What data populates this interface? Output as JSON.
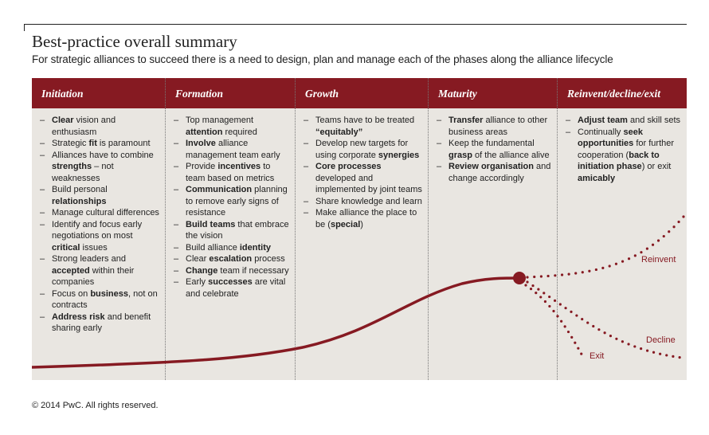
{
  "title": "Best-practice overall summary",
  "subtitle": "For strategic alliances to succeed there is a need to design, plan and manage each of the phases along the alliance lifecycle",
  "phases": [
    {
      "name": "Initiation",
      "items": [
        [
          {
            "t": "Clear",
            "b": 1
          },
          {
            "t": " vision and enthusiasm"
          }
        ],
        [
          {
            "t": "Strategic "
          },
          {
            "t": "fit",
            "b": 1
          },
          {
            "t": " is paramount"
          }
        ],
        [
          {
            "t": "Alliances have to combine "
          },
          {
            "t": "strengths",
            "b": 1
          },
          {
            "t": " – not weaknesses"
          }
        ],
        [
          {
            "t": "Build personal "
          },
          {
            "t": "relationships",
            "b": 1
          }
        ],
        [
          {
            "t": "Manage cultural differences"
          }
        ],
        [
          {
            "t": "Identify and focus early negotiations on most "
          },
          {
            "t": "critical",
            "b": 1
          },
          {
            "t": " issues"
          }
        ],
        [
          {
            "t": "Strong leaders and "
          },
          {
            "t": "accepted",
            "b": 1
          },
          {
            "t": " within their companies"
          }
        ],
        [
          {
            "t": "Focus on "
          },
          {
            "t": "business",
            "b": 1
          },
          {
            "t": ", not on contracts"
          }
        ],
        [
          {
            "t": "Address risk",
            "b": 1
          },
          {
            "t": " and benefit sharing early"
          }
        ]
      ]
    },
    {
      "name": "Formation",
      "items": [
        [
          {
            "t": "Top management "
          },
          {
            "t": "attention",
            "b": 1
          },
          {
            "t": " required"
          }
        ],
        [
          {
            "t": "Involve",
            "b": 1
          },
          {
            "t": " alliance management team early"
          }
        ],
        [
          {
            "t": "Provide "
          },
          {
            "t": "incentives",
            "b": 1
          },
          {
            "t": " to team based on metrics"
          }
        ],
        [
          {
            "t": "Communication",
            "b": 1
          },
          {
            "t": " planning to remove early signs of resistance"
          }
        ],
        [
          {
            "t": "Build teams",
            "b": 1
          },
          {
            "t": " that embrace the vision"
          }
        ],
        [
          {
            "t": "Build alliance "
          },
          {
            "t": "identity",
            "b": 1
          }
        ],
        [
          {
            "t": "Clear "
          },
          {
            "t": "escalation",
            "b": 1
          },
          {
            "t": " process"
          }
        ],
        [
          {
            "t": "Change",
            "b": 1
          },
          {
            "t": " team if necessary"
          }
        ],
        [
          {
            "t": "Early "
          },
          {
            "t": "successes",
            "b": 1
          },
          {
            "t": " are vital and celebrate"
          }
        ]
      ]
    },
    {
      "name": "Growth",
      "items": [
        [
          {
            "t": "Teams have to be treated "
          },
          {
            "t": "“equitably”",
            "b": 1
          }
        ],
        [
          {
            "t": "Develop new targets for using corporate "
          },
          {
            "t": "synergies",
            "b": 1
          }
        ],
        [
          {
            "t": "Core processes",
            "b": 1
          },
          {
            "t": " developed and implemented by joint teams"
          }
        ],
        [
          {
            "t": "Share knowledge and learn"
          }
        ],
        [
          {
            "t": "Make alliance the place to be ("
          },
          {
            "t": "special",
            "b": 1
          },
          {
            "t": ")"
          }
        ]
      ]
    },
    {
      "name": "Maturity",
      "items": [
        [
          {
            "t": "Transfer",
            "b": 1
          },
          {
            "t": " alliance to other business areas"
          }
        ],
        [
          {
            "t": "Keep the fundamental "
          },
          {
            "t": "grasp",
            "b": 1
          },
          {
            "t": " of the alliance alive"
          }
        ],
        [
          {
            "t": "Review organisation",
            "b": 1
          },
          {
            "t": " and change accordingly"
          }
        ]
      ]
    },
    {
      "name": "Reinvent/decline/exit",
      "items": [
        [
          {
            "t": "Adjust team",
            "b": 1
          },
          {
            "t": " and skill sets"
          }
        ],
        [
          {
            "t": "Continually "
          },
          {
            "t": "seek opportunities",
            "b": 1
          },
          {
            "t": " for further cooperation ("
          },
          {
            "t": "back to initiation phase",
            "b": 1
          },
          {
            "t": ") or exit "
          },
          {
            "t": "amicably",
            "b": 1
          }
        ]
      ]
    }
  ],
  "curve_labels": {
    "reinvent": "Reinvent",
    "decline": "Decline",
    "exit": "Exit"
  },
  "footer": "© 2014 PwC. All rights reserved.",
  "colors": {
    "accent": "#861a22",
    "panel": "#e9e6e1"
  }
}
